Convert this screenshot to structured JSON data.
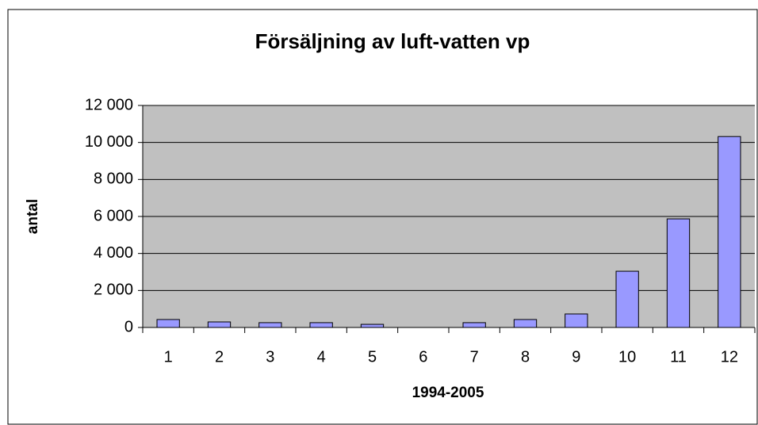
{
  "chart_data": {
    "type": "bar",
    "title": "Försäljning av luft-vatten vp",
    "x_label": "1994-2005",
    "y_label": "antal",
    "categories": [
      1,
      2,
      3,
      4,
      5,
      6,
      7,
      8,
      9,
      10,
      11,
      12
    ],
    "values": [
      430,
      300,
      260,
      260,
      170,
      0,
      260,
      430,
      730,
      3040,
      5870,
      10320
    ],
    "color": "#9999ff",
    "ylim": [
      0,
      12000
    ],
    "yticks": [
      0,
      {
        "value": 2000,
        "label": "2 000"
      },
      {
        "value": 4000,
        "label": "4 000"
      },
      {
        "value": 6000,
        "label": "6 000"
      },
      {
        "value": 8000,
        "label": "8 000"
      },
      {
        "value": 10000,
        "label": "10 000"
      },
      {
        "value": 12000,
        "label": "12 000"
      }
    ],
    "grid": true
  }
}
